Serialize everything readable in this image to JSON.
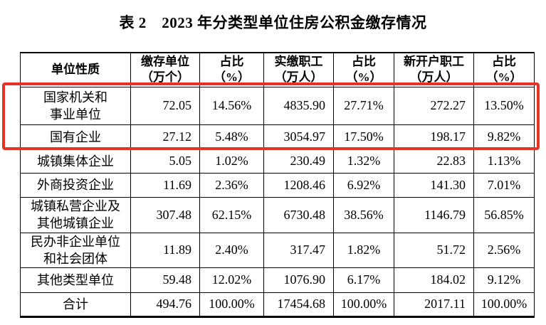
{
  "title": "表 2　2023 年分类型单位住房公积金缴存情况",
  "highlight": {
    "color": "#e63226"
  },
  "table": {
    "columns": [
      {
        "label": "单位性质",
        "unit": ""
      },
      {
        "label": "缴存单位",
        "unit": "（万个）"
      },
      {
        "label": "占比",
        "unit": "（%）"
      },
      {
        "label": "实缴职工",
        "unit": "（万人）"
      },
      {
        "label": "占比",
        "unit": "（%）"
      },
      {
        "label": "新开户职工",
        "unit": "（万人）"
      },
      {
        "label": "占比",
        "unit": "（%）"
      }
    ],
    "rows": [
      {
        "name": "国家机关和\n事业单位",
        "values": [
          "72.05",
          "14.56%",
          "4835.90",
          "27.71%",
          "272.27",
          "13.50%"
        ],
        "highlighted": true
      },
      {
        "name": "国有企业",
        "values": [
          "27.12",
          "5.48%",
          "3054.97",
          "17.50%",
          "198.17",
          "9.82%"
        ],
        "highlighted": true
      },
      {
        "name": "城镇集体企业",
        "values": [
          "5.05",
          "1.02%",
          "230.49",
          "1.32%",
          "22.83",
          "1.13%"
        ],
        "highlighted": false
      },
      {
        "name": "外商投资企业",
        "values": [
          "11.69",
          "2.36%",
          "1208.46",
          "6.92%",
          "141.30",
          "7.01%"
        ],
        "highlighted": false
      },
      {
        "name": "城镇私营企业及\n其他城镇企业",
        "values": [
          "307.48",
          "62.15%",
          "6730.48",
          "38.56%",
          "1146.79",
          "56.85%"
        ],
        "highlighted": false
      },
      {
        "name": "民办非企业单位\n和社会团体",
        "values": [
          "11.89",
          "2.40%",
          "317.47",
          "1.82%",
          "51.72",
          "2.56%"
        ],
        "highlighted": false
      },
      {
        "name": "其他类型单位",
        "values": [
          "59.48",
          "12.02%",
          "1076.90",
          "6.17%",
          "184.02",
          "9.12%"
        ],
        "highlighted": false
      },
      {
        "name": "合计",
        "values": [
          "494.76",
          "100.00%",
          "17454.68",
          "100.00%",
          "2017.11",
          "100.00%"
        ],
        "highlighted": false
      }
    ]
  }
}
